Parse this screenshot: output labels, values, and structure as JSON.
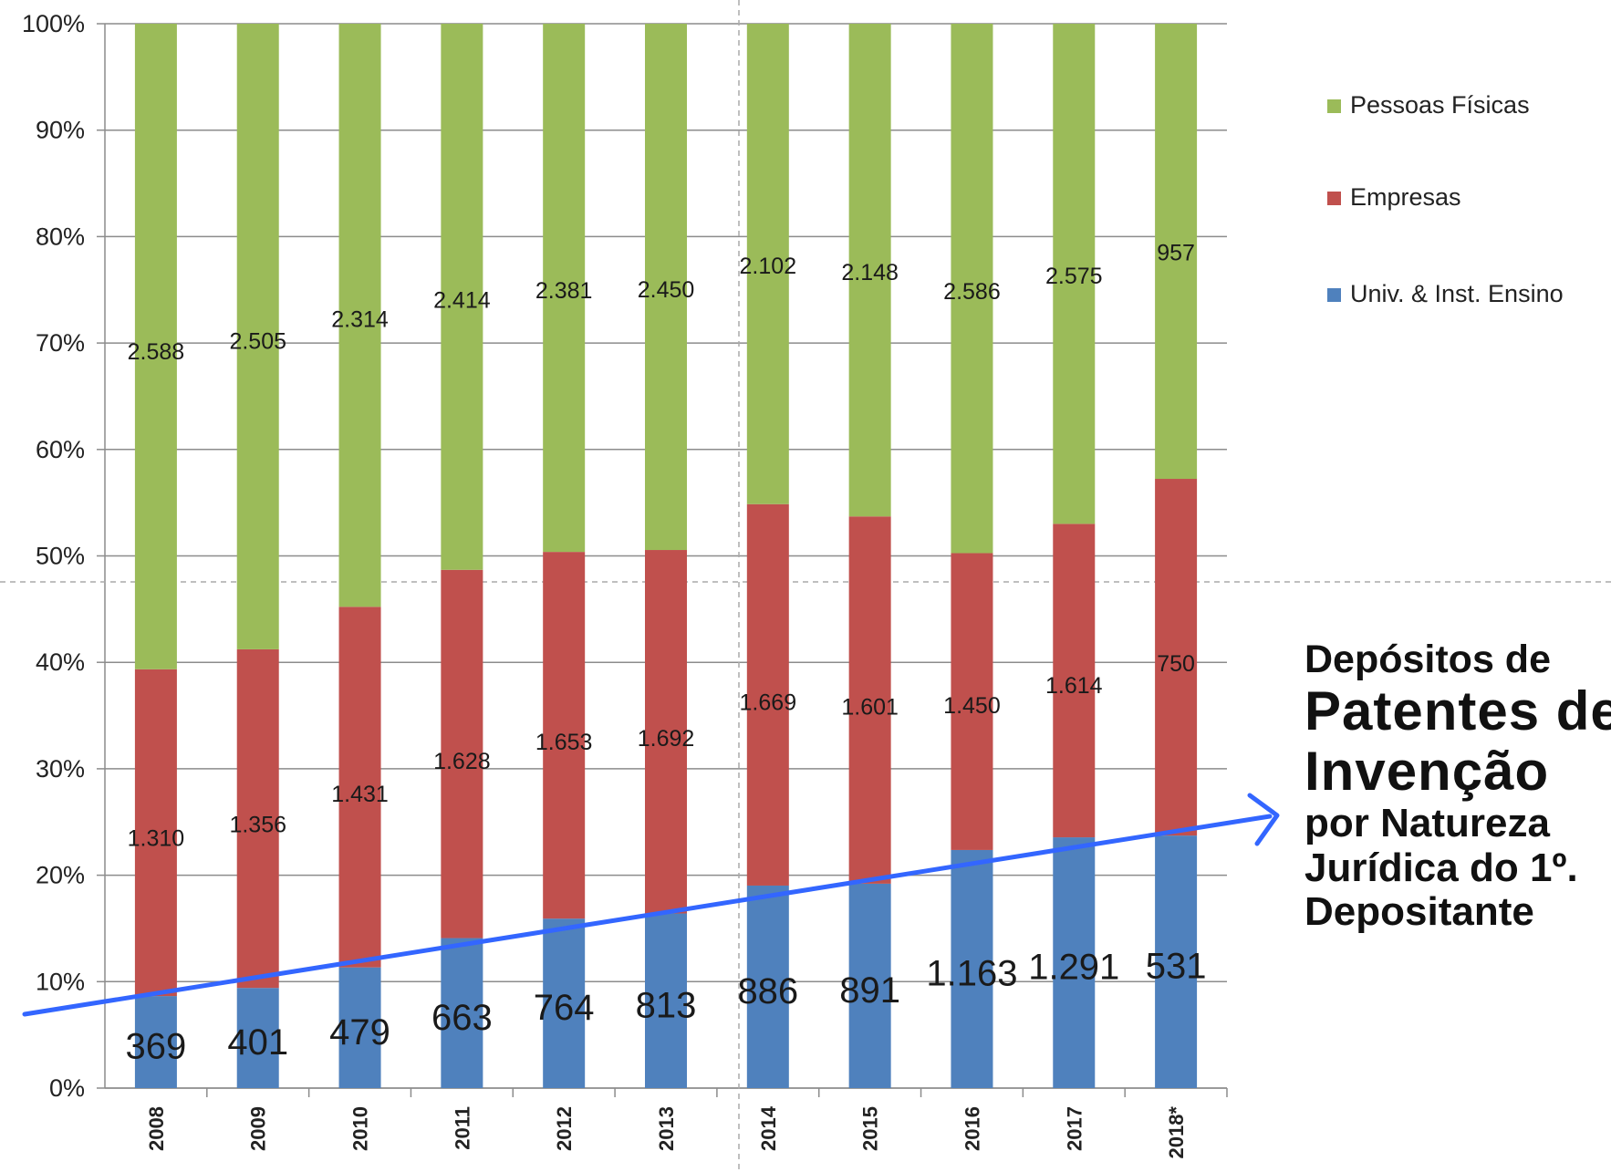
{
  "chart_data": {
    "type": "bar",
    "stacked": "percent",
    "categories": [
      "2008",
      "2009",
      "2010",
      "2011",
      "2012",
      "2013",
      "2014",
      "2015",
      "2016",
      "2017",
      "2018*"
    ],
    "series": [
      {
        "name": "Univ. & Inst. Ensino",
        "color": "#4f81bd",
        "values": [
          369,
          401,
          479,
          663,
          764,
          813,
          886,
          891,
          1163,
          1291,
          531
        ],
        "labels": [
          "369",
          "401",
          "479",
          "663",
          "764",
          "813",
          "886",
          "891",
          "1.163",
          "1.291",
          "531"
        ]
      },
      {
        "name": "Empresas",
        "color": "#c0504d",
        "values": [
          1310,
          1356,
          1431,
          1628,
          1653,
          1692,
          1669,
          1601,
          1450,
          1614,
          750
        ],
        "labels": [
          "1.310",
          "1.356",
          "1.431",
          "1.628",
          "1.653",
          "1.692",
          "1.669",
          "1.601",
          "1.450",
          "1.614",
          "750"
        ]
      },
      {
        "name": "Pessoas Físicas",
        "color": "#9bbb59",
        "values": [
          2588,
          2505,
          2314,
          2414,
          2381,
          2450,
          2102,
          2148,
          2586,
          2575,
          957
        ],
        "labels": [
          "2.588",
          "2.505",
          "2.314",
          "2.414",
          "2.381",
          "2.450",
          "2.102",
          "2.148",
          "2.586",
          "2.575",
          "957"
        ]
      }
    ],
    "y_ticks": [
      "0%",
      "10%",
      "20%",
      "30%",
      "40%",
      "50%",
      "60%",
      "70%",
      "80%",
      "90%",
      "100%"
    ],
    "ylim": [
      0,
      100
    ],
    "grid": true,
    "legend_position": "right",
    "legend_order": [
      "Pessoas Físicas",
      "Empresas",
      "Univ. & Inst. Ensino"
    ],
    "trend_arrow_color": "#3366ff"
  },
  "annotation": {
    "line1": "Depósitos de",
    "line2": "Patentes de",
    "line3": "Invenção",
    "line4": "por Natureza",
    "line5": "Jurídica do 1º.",
    "line6": "Depositante"
  }
}
